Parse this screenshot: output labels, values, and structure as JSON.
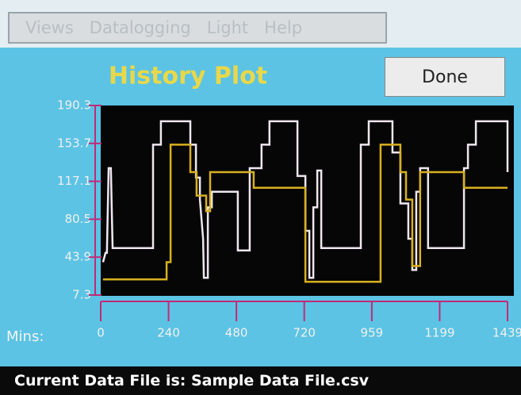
{
  "menu": [
    "Views",
    "Datalogging",
    "Light",
    "Help"
  ],
  "button": "Done",
  "footer": "Current Data File is: Sample Data File.csv",
  "chart_data": {
    "type": "line",
    "title": "History Plot",
    "x_label": "Mins:",
    "xlim": [
      0,
      1439
    ],
    "xticks": [
      0,
      240,
      480,
      720,
      959,
      1199,
      1439
    ],
    "ylim": [
      7.3,
      190.3
    ],
    "yticks": [
      7.3,
      43.9,
      80.5,
      117.1,
      153.7,
      190.3
    ],
    "series": [
      {
        "color": "#f0e6f0",
        "x": [
          8,
          17,
          22,
          28,
          36,
          42,
          185,
          185,
          213,
          213,
          317,
          317,
          337,
          337,
          351,
          351,
          362,
          365,
          379,
          379,
          393,
          393,
          485,
          485,
          527,
          527,
          569,
          569,
          597,
          597,
          696,
          696,
          724,
          724,
          738,
          738,
          752,
          752,
          766,
          766,
          780,
          780,
          920,
          920,
          948,
          948,
          1032,
          1032,
          1060,
          1060,
          1088,
          1088,
          1102,
          1102,
          1116,
          1116,
          1130,
          1130,
          1158,
          1158,
          1285,
          1285,
          1299,
          1299,
          1327,
          1327,
          1439,
          1439
        ],
        "values": [
          39.1,
          48.1,
          48.1,
          129.8,
          129.8,
          52.7,
          52.7,
          152.5,
          152.5,
          175.1,
          175.1,
          152.5,
          152.5,
          120.7,
          120.7,
          99.5,
          61.7,
          23.9,
          23.9,
          92.0,
          92.0,
          107.1,
          107.1,
          50.4,
          50.4,
          129.8,
          129.8,
          152.5,
          152.5,
          175.1,
          175.1,
          122.2,
          122.2,
          69.3,
          69.3,
          23.9,
          23.9,
          92.0,
          92.0,
          127.5,
          127.5,
          52.7,
          52.7,
          152.5,
          152.5,
          175.1,
          175.1,
          144.9,
          144.9,
          95.7,
          95.7,
          61.7,
          61.7,
          31.5,
          31.5,
          107.1,
          107.1,
          129.8,
          129.8,
          52.7,
          52.7,
          129.8,
          129.8,
          152.5,
          152.5,
          175.1,
          175.1,
          126.0
        ]
      },
      {
        "color": "#d8b020",
        "x": [
          8,
          233,
          233,
          247,
          247,
          317,
          317,
          339,
          339,
          373,
          373,
          387,
          387,
          541,
          541,
          724,
          724,
          990,
          990,
          1060,
          1060,
          1080,
          1080,
          1102,
          1102,
          1130,
          1130,
          1285,
          1285,
          1439
        ],
        "values": [
          22.4,
          22.4,
          39.1,
          39.1,
          152.5,
          152.5,
          126.0,
          126.0,
          103.3,
          103.3,
          88.2,
          88.2,
          126.0,
          126.0,
          110.9,
          110.9,
          20.2,
          20.2,
          152.5,
          152.5,
          126.0,
          126.0,
          99.5,
          99.5,
          35.3,
          35.3,
          126.0,
          126.0,
          110.9,
          110.9
        ]
      }
    ]
  }
}
